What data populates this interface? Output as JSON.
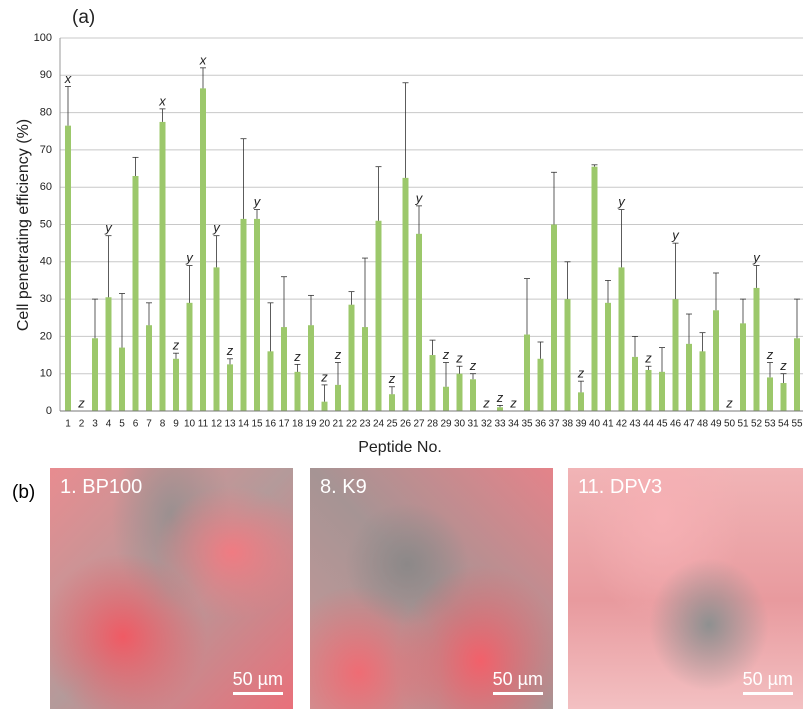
{
  "chart_data": {
    "type": "bar",
    "panel_label": "(a)",
    "x_label": "Peptide No.",
    "y_label": "Cell penetrating efficiency (%)",
    "categories": [
      1,
      2,
      3,
      4,
      5,
      6,
      7,
      8,
      9,
      10,
      11,
      12,
      13,
      14,
      15,
      16,
      17,
      18,
      19,
      20,
      21,
      22,
      23,
      24,
      25,
      26,
      27,
      28,
      29,
      30,
      31,
      32,
      33,
      34,
      35,
      36,
      37,
      38,
      39,
      40,
      41,
      42,
      43,
      44,
      45,
      46,
      47,
      48,
      49,
      50,
      51,
      52,
      53,
      54,
      55
    ],
    "values": [
      76.5,
      0,
      19.5,
      30.5,
      17,
      63,
      23,
      77.5,
      14,
      29,
      86.5,
      38.5,
      12.5,
      51.5,
      51.5,
      16,
      22.5,
      10.5,
      23,
      2.5,
      7,
      28.5,
      22.5,
      51,
      4.5,
      62.5,
      47.5,
      15,
      6.5,
      10,
      8.5,
      0,
      1,
      0,
      20.5,
      14,
      50,
      30,
      5,
      65.5,
      29,
      38.5,
      14.5,
      11,
      10.5,
      30,
      18,
      16,
      27,
      0,
      23.5,
      33,
      9,
      7.5,
      19.5
    ],
    "errors": [
      10.5,
      0,
      10.5,
      16.5,
      14.5,
      5,
      6,
      3.5,
      1.5,
      10,
      5.5,
      8.5,
      1.5,
      21.5,
      2.5,
      13,
      13.5,
      2,
      8,
      4.5,
      6,
      3.5,
      18.5,
      14.5,
      2,
      25.5,
      7.5,
      4,
      6.5,
      2,
      1.5,
      0,
      0.5,
      0,
      15,
      4.5,
      14,
      10,
      3,
      0.5,
      6,
      15.5,
      5.5,
      1,
      6.5,
      15,
      8,
      5,
      10,
      0,
      6.5,
      6,
      4,
      2.5,
      10.5
    ],
    "annotations": [
      "x",
      "z",
      null,
      "y",
      null,
      null,
      null,
      "x",
      "z",
      "y",
      "x",
      "y",
      "z",
      null,
      "y",
      null,
      null,
      "z",
      null,
      "z",
      "z",
      null,
      null,
      null,
      "z",
      null,
      "y",
      null,
      "z",
      "z",
      "z",
      "z",
      "z",
      "z",
      null,
      null,
      null,
      null,
      "z",
      null,
      null,
      "y",
      null,
      "z",
      null,
      "y",
      null,
      null,
      null,
      "z",
      null,
      "y",
      "z",
      "z",
      null
    ],
    "color": "#9cc86b",
    "ylim": [
      0,
      100
    ],
    "yticks": [
      0,
      10,
      20,
      30,
      40,
      50,
      60,
      70,
      80,
      90,
      100
    ],
    "grid": true
  },
  "panels": {
    "label": "(b)",
    "images": [
      {
        "label": "1. BP100",
        "scale": "50 µm"
      },
      {
        "label": "8. K9",
        "scale": "50 µm"
      },
      {
        "label": "11. DPV3",
        "scale": "50 µm"
      }
    ]
  }
}
